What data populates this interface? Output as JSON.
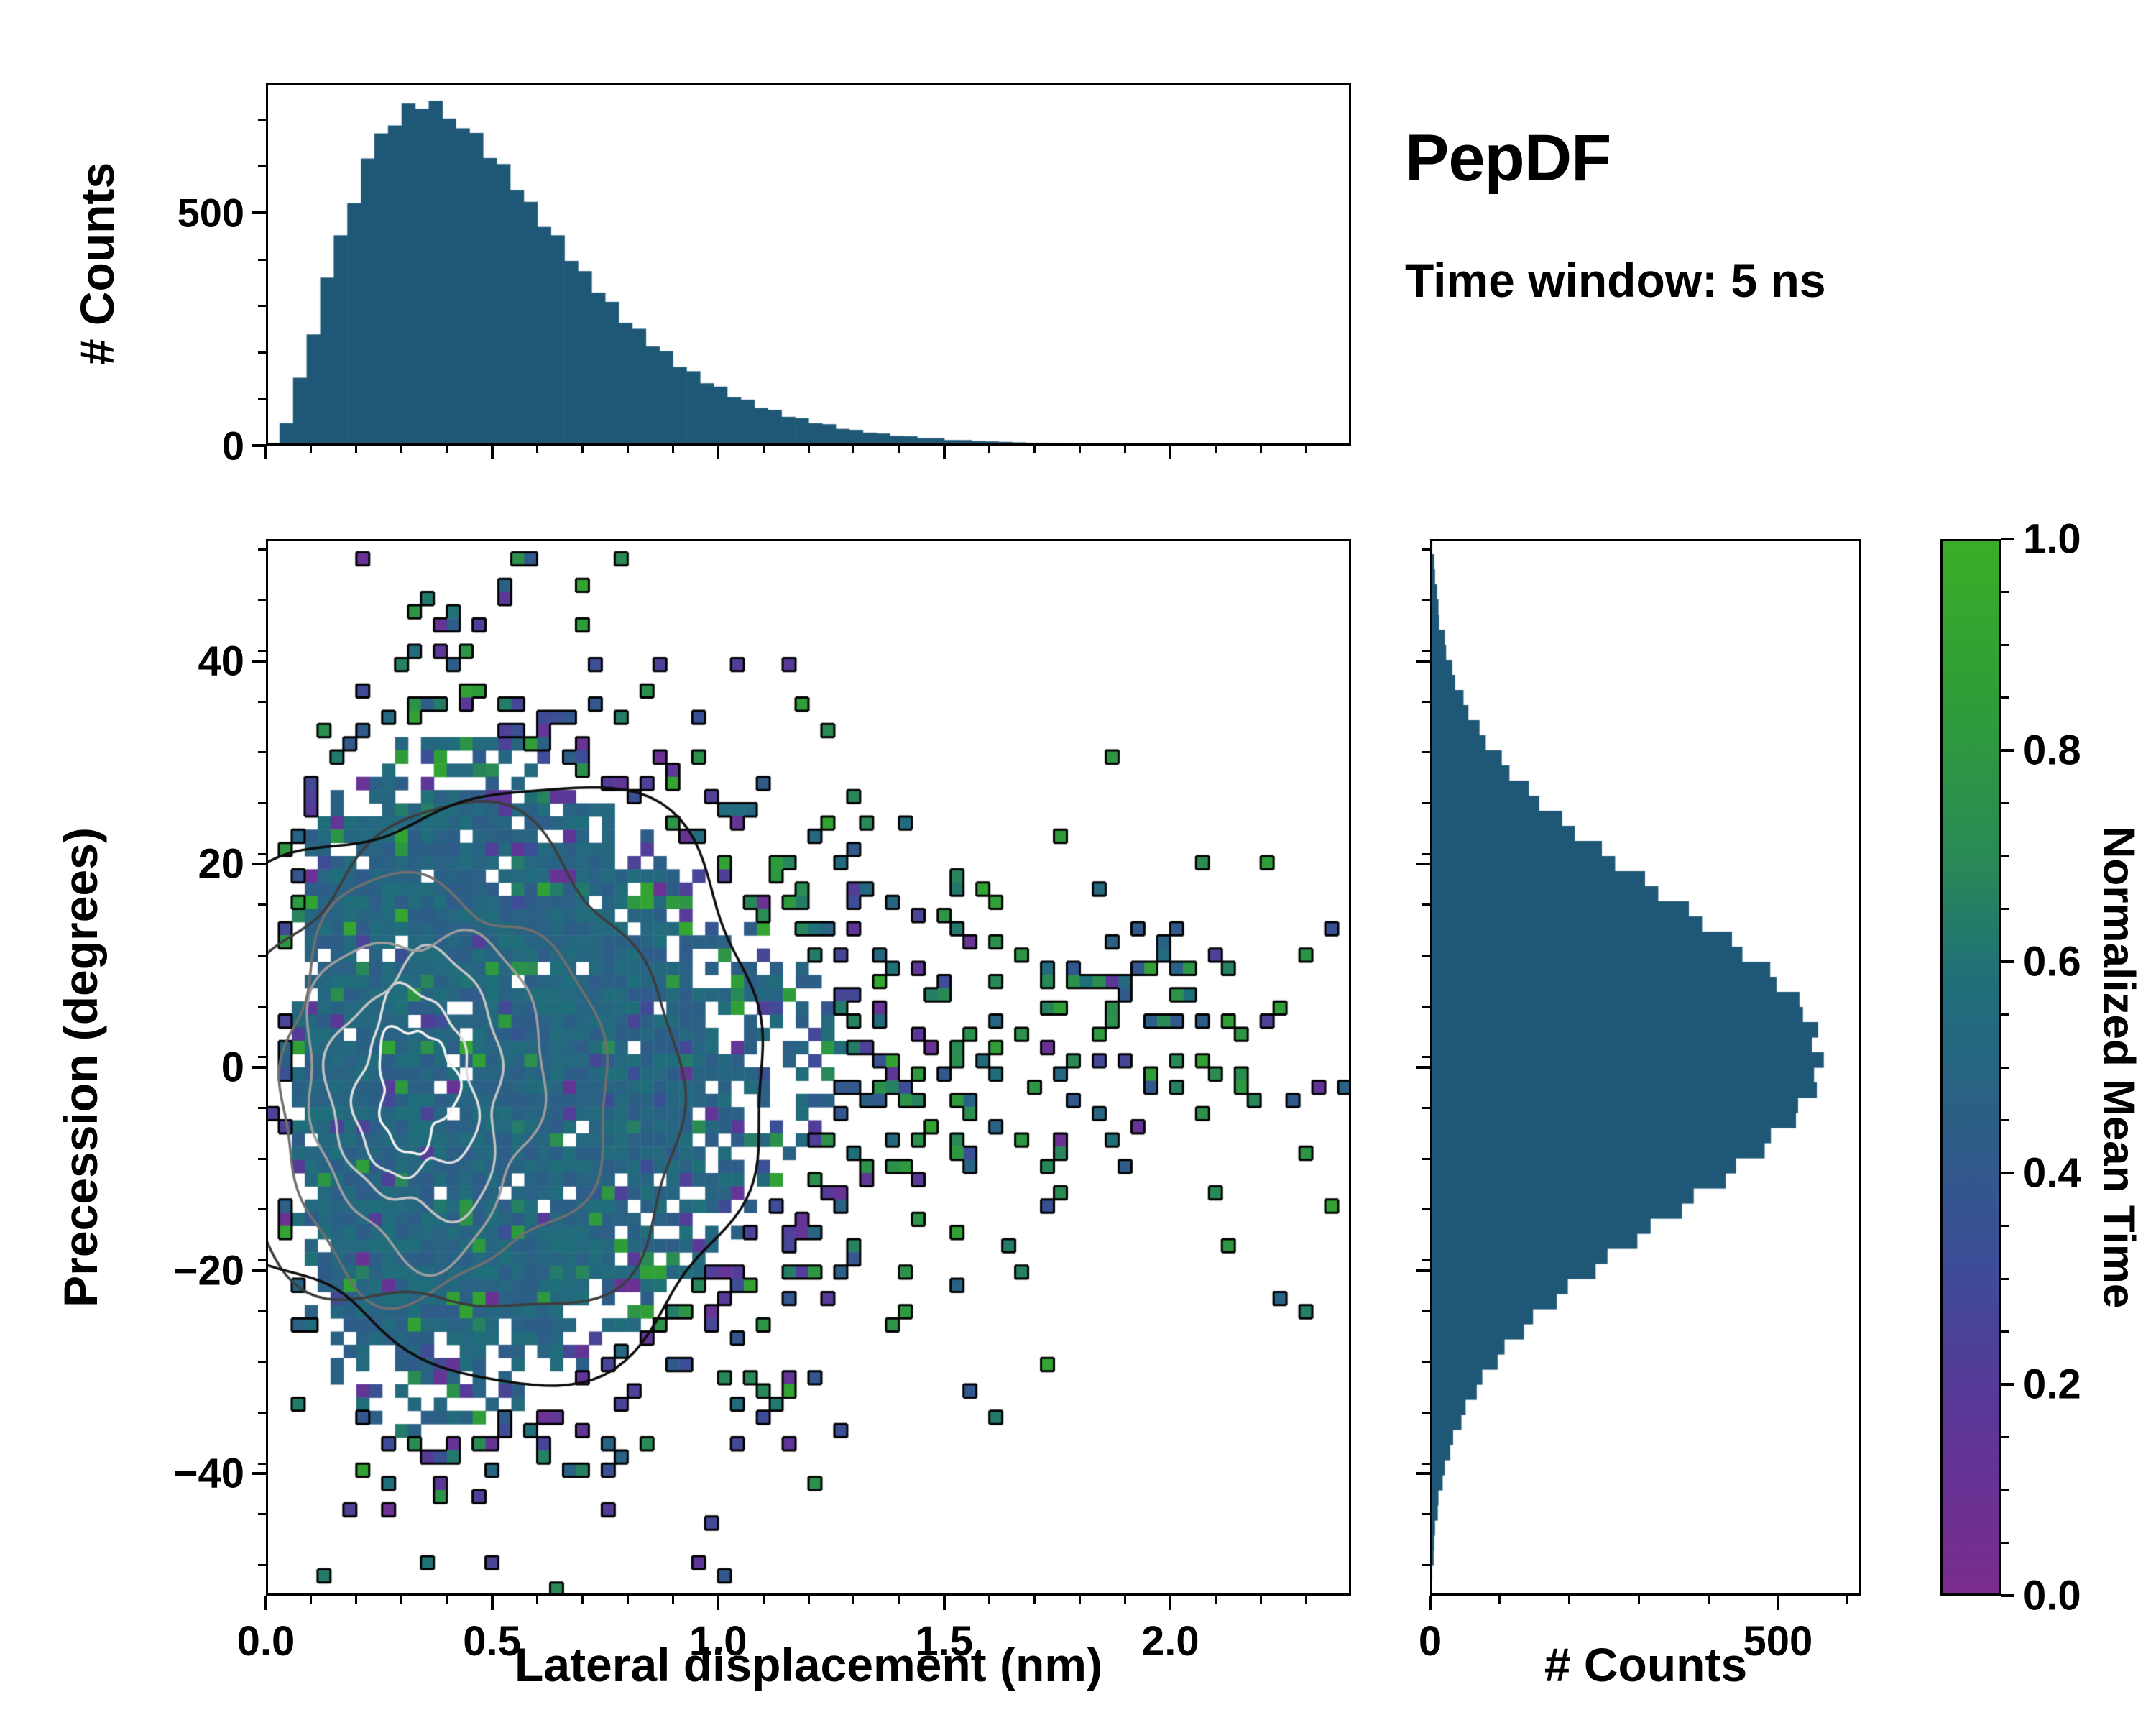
{
  "title": {
    "main": "PepDF",
    "subtitle": "Time window: 5 ns"
  },
  "colors": {
    "histogram_fill": "#1f5876",
    "frame": "#000000",
    "background": "#ffffff"
  },
  "colormap": {
    "label": "Normalized Mean Time",
    "stops": [
      {
        "t": 0.0,
        "color": "#7b2c8f"
      },
      {
        "t": 0.18,
        "color": "#5a3898"
      },
      {
        "t": 0.32,
        "color": "#3c4e97"
      },
      {
        "t": 0.45,
        "color": "#2c5f86"
      },
      {
        "t": 0.58,
        "color": "#1f6f7a"
      },
      {
        "t": 0.7,
        "color": "#2a8a55"
      },
      {
        "t": 0.85,
        "color": "#2f9e38"
      },
      {
        "t": 1.0,
        "color": "#3aae27"
      }
    ]
  },
  "chart_data": [
    {
      "id": "top_marginal_histogram",
      "type": "bar",
      "ylabel": "# Counts",
      "x_range": [
        0,
        2.4
      ],
      "bin_width": 0.03,
      "ylim": [
        0,
        780
      ],
      "yticks": [
        {
          "v": 0,
          "label": "0"
        },
        {
          "v": 500,
          "label": "500"
        }
      ],
      "y_minor_step": 100,
      "xticks_major": [
        0,
        0.5,
        1.0,
        1.5,
        2.0
      ],
      "x_minor_step": 0.1,
      "values": [
        6,
        48,
        146,
        239,
        361,
        452,
        521,
        617,
        671,
        688,
        735,
        724,
        741,
        703,
        682,
        672,
        618,
        605,
        549,
        524,
        470,
        452,
        397,
        375,
        329,
        309,
        264,
        251,
        213,
        203,
        169,
        160,
        134,
        127,
        104,
        99,
        81,
        77,
        62,
        59,
        48,
        46,
        36,
        34,
        28,
        26,
        21,
        20,
        16,
        16,
        12,
        12,
        10,
        9,
        8,
        7,
        6,
        6,
        5,
        4,
        4,
        3,
        3,
        3,
        2,
        2,
        2,
        1,
        1,
        1,
        1,
        1,
        1,
        0,
        1,
        0,
        1,
        0,
        0,
        1
      ]
    },
    {
      "id": "main_heatmap",
      "type": "heatmap",
      "xlabel": "Lateral displacement (nm)",
      "ylabel": "Precession (degrees)",
      "color_variable": "Normalized Mean Time",
      "xlim": [
        0,
        2.4
      ],
      "ylim": [
        -52,
        52
      ],
      "xticks": [
        {
          "v": 0,
          "label": "0.0"
        },
        {
          "v": 0.5,
          "label": "0.5"
        },
        {
          "v": 1,
          "label": "1.0"
        },
        {
          "v": 1.5,
          "label": "1.5"
        },
        {
          "v": 2,
          "label": "2.0"
        }
      ],
      "yticks": [
        {
          "v": -40,
          "label": "−40"
        },
        {
          "v": -20,
          "label": "−20"
        },
        {
          "v": 0,
          "label": "0"
        },
        {
          "v": 20,
          "label": "20"
        },
        {
          "v": 40,
          "label": "40"
        }
      ],
      "x_minor_step": 0.1,
      "y_minor_step": 5,
      "grid": {
        "nx": 84,
        "ny": 80
      },
      "density_model": {
        "x_mode": 0.35,
        "x_power": 2.2,
        "x_scale": 0.16,
        "y_mean": -1,
        "y_sigma": 16.5,
        "tail": {
          "amp": 0.075,
          "x_start": 0.9,
          "x_decay": 1.1,
          "y_center": 2,
          "y_sigma": 11
        },
        "blob": {
          "amp": 0.05,
          "x": 2.0,
          "x_sigma": 0.2,
          "y": 8,
          "y_sigma": 6
        },
        "occupancy_scale": 3.2,
        "occupancy_max": 0.965,
        "dense_threshold": 0.2,
        "outline_threshold": 0.105,
        "seed": 20240613
      },
      "mean_time_model": {
        "dense_mean": 0.5,
        "dense_spread": 0.16,
        "sparse_green": [
          0.62,
          0.92
        ],
        "sparse_purple": [
          0.08,
          0.35
        ],
        "sparse_blue": [
          0.38,
          0.6
        ]
      },
      "contour_levels": [
        {
          "color": "#f2f2f2",
          "cx": 0.33,
          "cy": -2,
          "rx": 0.085,
          "ry": 6,
          "noise": 0.24
        },
        {
          "color": "#dedede",
          "cx": 0.33,
          "cy": -2,
          "rx": 0.13,
          "ry": 9,
          "noise": 0.2
        },
        {
          "color": "#c2c2c2",
          "cx": 0.34,
          "cy": -2,
          "rx": 0.19,
          "ry": 12.5,
          "noise": 0.18
        },
        {
          "color": "#9c9c9c",
          "cx": 0.35,
          "cy": -2,
          "rx": 0.26,
          "ry": 16,
          "noise": 0.16
        },
        {
          "color": "#6f6f6f",
          "cx": 0.38,
          "cy": -2,
          "rx": 0.36,
          "ry": 20,
          "noise": 0.15
        },
        {
          "color": "#3d3d3d",
          "cx": 0.42,
          "cy": -1,
          "rx": 0.5,
          "ry": 24.5,
          "noise": 0.14
        },
        {
          "color": "#0e0e0e",
          "cx": 0.47,
          "cy": -1,
          "rx": 0.66,
          "ry": 28.5,
          "noise": 0.13
        }
      ]
    },
    {
      "id": "right_marginal_histogram",
      "type": "bar",
      "orientation": "horizontal",
      "xlabel": "# Counts",
      "y_range": [
        -52,
        52
      ],
      "xlim": [
        0,
        620
      ],
      "xticks": [
        {
          "v": 0,
          "label": "0"
        },
        {
          "v": 500,
          "label": "500"
        }
      ],
      "x_minor_step": 100,
      "y_minor_step": 5,
      "values_top_to_bottom": [
        3,
        6,
        7,
        10,
        12,
        13,
        21,
        23,
        32,
        36,
        48,
        55,
        71,
        80,
        103,
        114,
        142,
        157,
        190,
        208,
        247,
        266,
        309,
        328,
        372,
        391,
        434,
        449,
        489,
        498,
        531,
        536,
        558,
        549,
        566,
        552,
        556,
        529,
        526,
        490,
        481,
        440,
        425,
        379,
        362,
        317,
        298,
        255,
        238,
        198,
        182,
        148,
        135,
        107,
        97,
        75,
        67,
        51,
        45,
        33,
        29,
        21,
        18,
        12,
        11,
        7,
        6,
        5,
        3,
        2
      ]
    },
    {
      "id": "colorbar",
      "type": "colorbar",
      "label": "Normalized Mean Time",
      "range": [
        0,
        1
      ],
      "ticks": [
        {
          "v": 0,
          "label": "0.0"
        },
        {
          "v": 0.2,
          "label": "0.2"
        },
        {
          "v": 0.4,
          "label": "0.4"
        },
        {
          "v": 0.6,
          "label": "0.6"
        },
        {
          "v": 0.8,
          "label": "0.8"
        },
        {
          "v": 1,
          "label": "1.0"
        }
      ],
      "minor_step": 0.05
    }
  ]
}
